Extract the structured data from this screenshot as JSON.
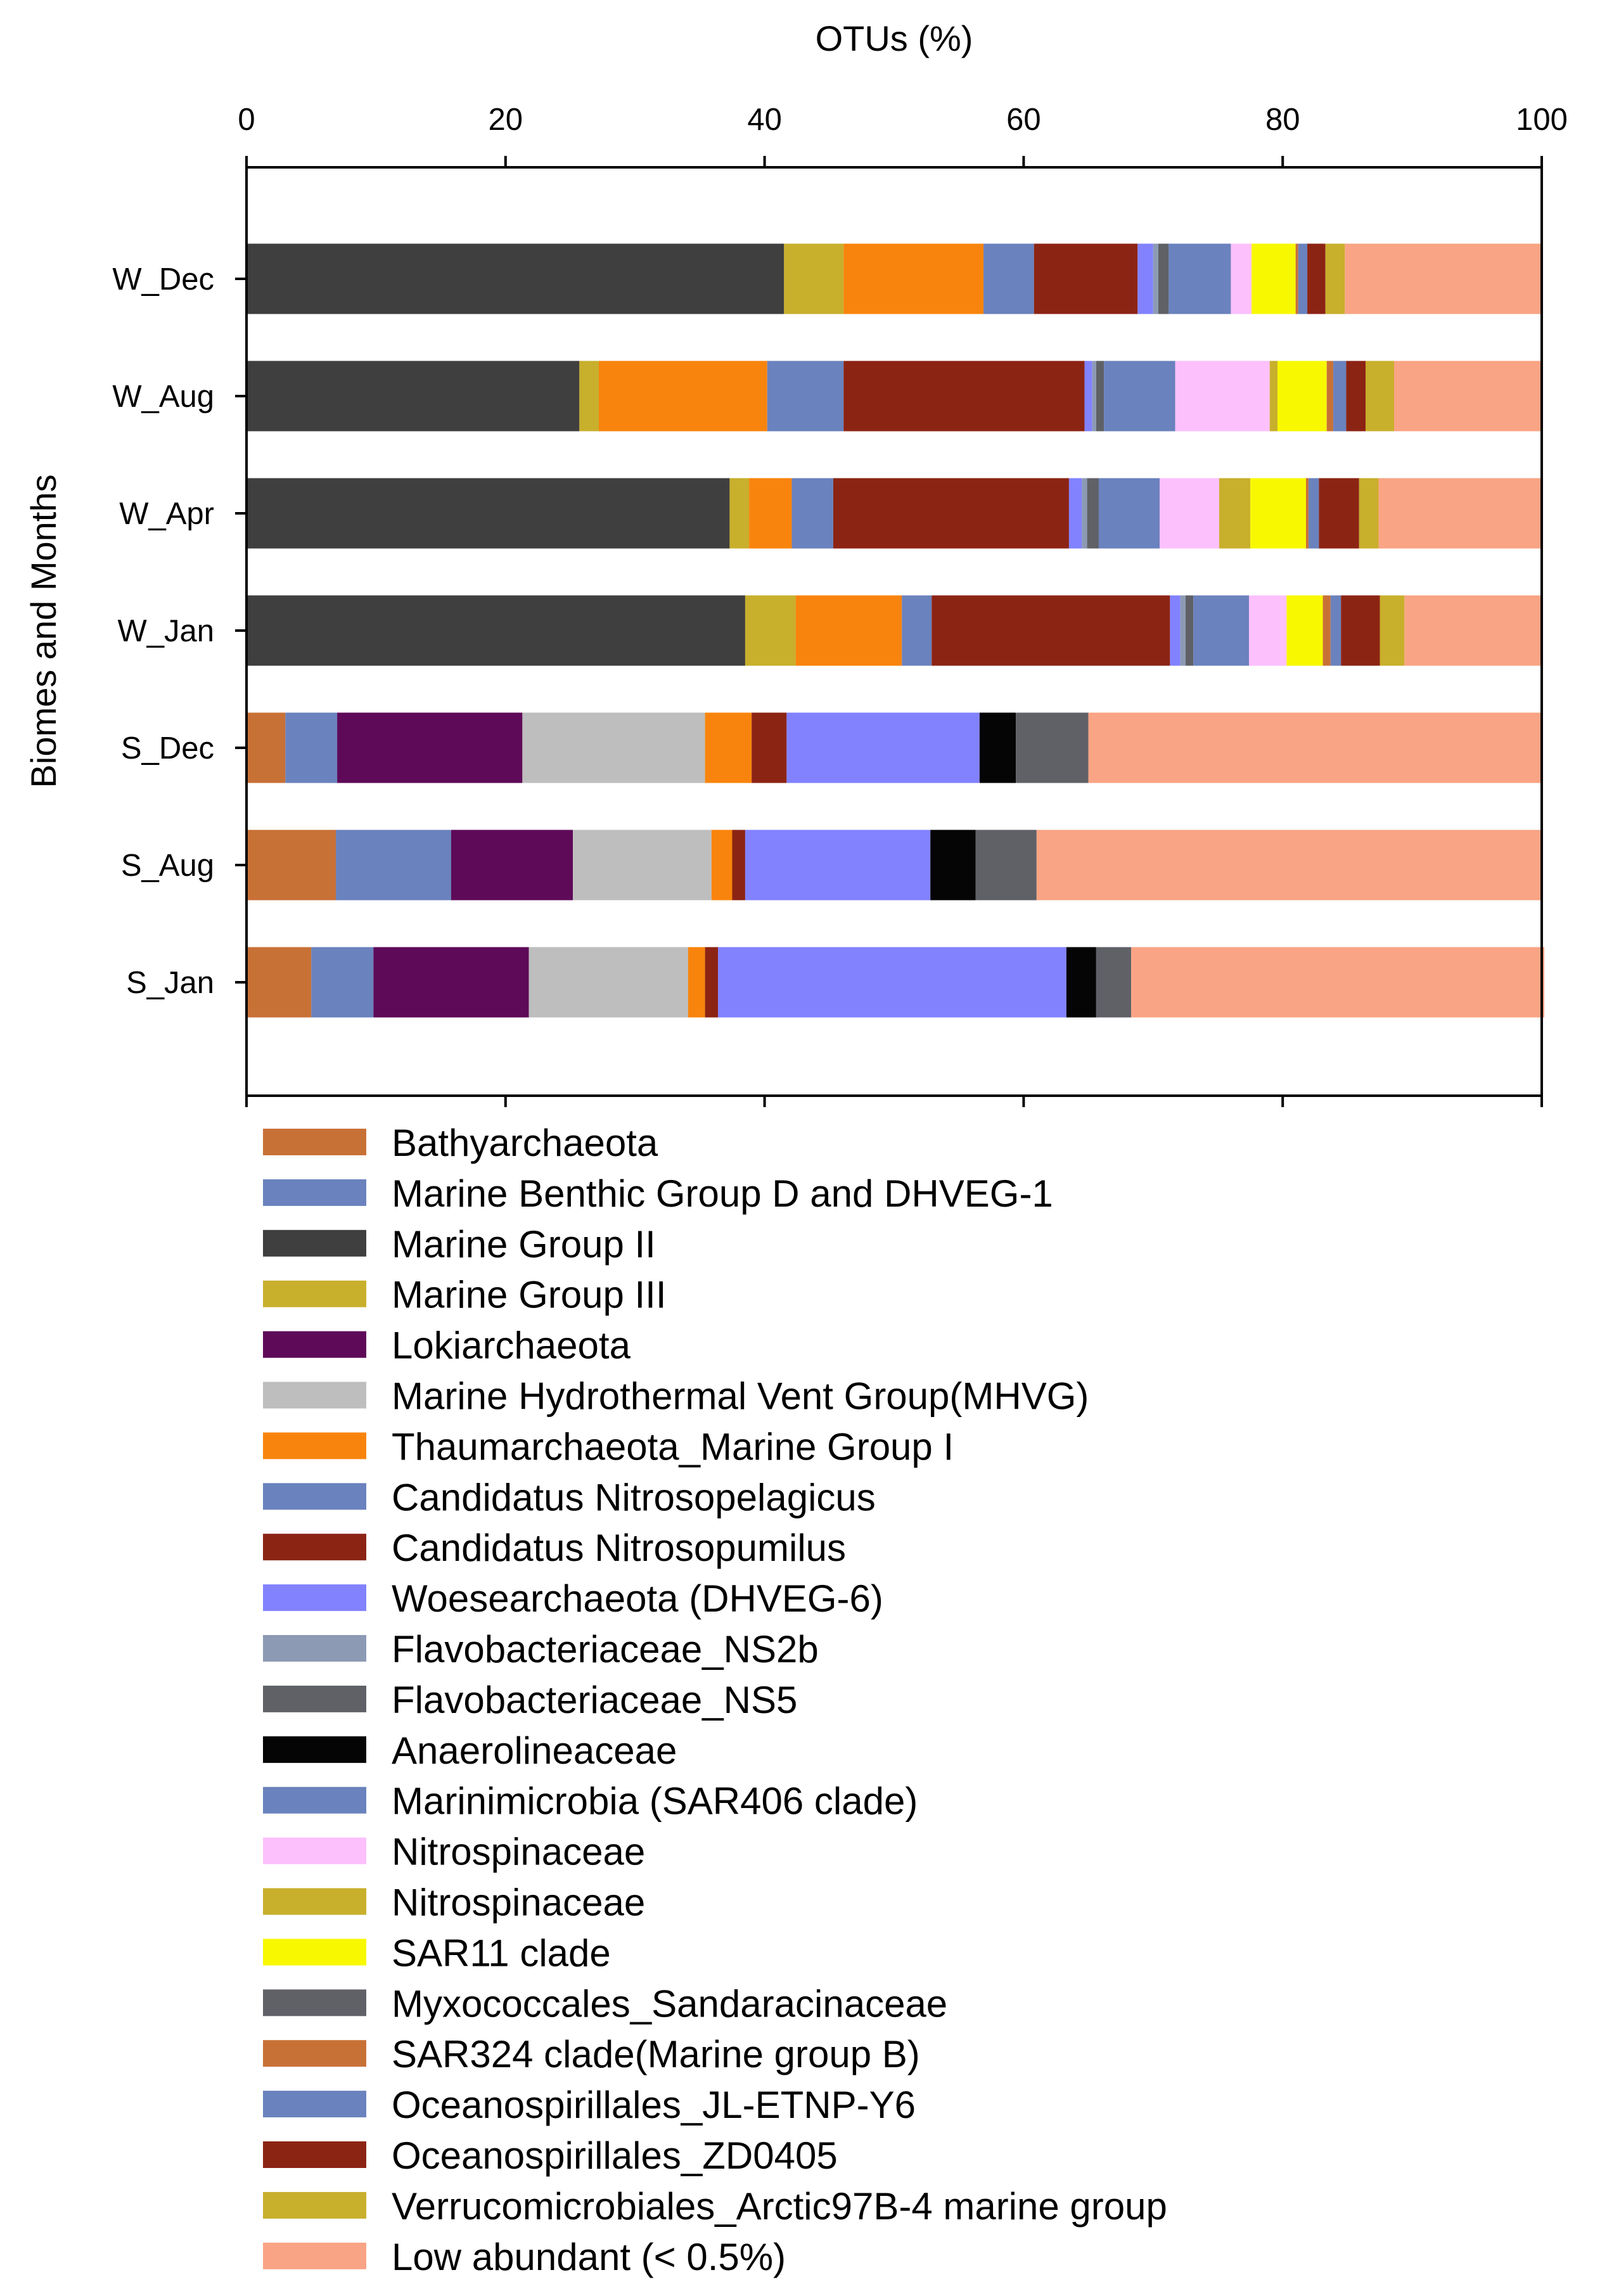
{
  "chart_data": {
    "type": "bar",
    "orientation": "horizontal",
    "stacked": true,
    "xlabel": "OTUs (%)",
    "ylabel": "Biomes and Months",
    "xlim": [
      0,
      100
    ],
    "xticks": [
      "0",
      "20",
      "40",
      "60",
      "80",
      "100"
    ],
    "categories": [
      "W_Dec",
      "W_Aug",
      "W_Apr",
      "W_Jan",
      "S_Dec",
      "S_Aug",
      "S_Jan"
    ],
    "series": [
      {
        "name": "Bathyarchaeota",
        "color": "#C87137",
        "values": [
          0,
          0,
          0,
          0,
          3.0,
          6.9,
          5.0
        ]
      },
      {
        "name": "Marine Benthic Group D and DHVEG-1",
        "color": "#6A82BD",
        "values": [
          0,
          0,
          0,
          0,
          4.0,
          8.9,
          4.8
        ]
      },
      {
        "name": "Marine Group II",
        "color": "#3F3F3F",
        "values": [
          41.5,
          25.7,
          37.3,
          38.5,
          0,
          0,
          0
        ]
      },
      {
        "name": "Marine Group III",
        "color": "#C8AF2C",
        "values": [
          4.6,
          1.5,
          1.5,
          3.9,
          0,
          0,
          0
        ]
      },
      {
        "name": "Lokiarchaeota",
        "color": "#5E0A59",
        "values": [
          0,
          0,
          0,
          0,
          14.3,
          9.4,
          12.0
        ]
      },
      {
        "name": "Marine Hydrothermal Vent Group(MHVG)",
        "color": "#BEBEBE",
        "values": [
          0,
          0,
          0,
          0,
          14.1,
          10.7,
          12.3
        ]
      },
      {
        "name": "Thaumarchaeota_Marine Group I",
        "color": "#F8840D",
        "values": [
          10.8,
          13.0,
          3.3,
          8.2,
          3.6,
          1.6,
          1.3
        ]
      },
      {
        "name": "Candidatus Nitrosopelagicus",
        "color": "#6A82BD",
        "values": [
          3.9,
          5.9,
          3.2,
          2.3,
          0,
          0,
          0
        ]
      },
      {
        "name": "Candidatus Nitrosopumilus",
        "color": "#8C2414",
        "values": [
          8.0,
          18.6,
          18.2,
          18.4,
          2.7,
          1.0,
          1.0
        ]
      },
      {
        "name": "Woesearchaeota (DHVEG-6)",
        "color": "#8282FF",
        "values": [
          1.2,
          0.6,
          1.0,
          0.8,
          14.9,
          14.3,
          26.9
        ]
      },
      {
        "name": "Flavobacteriaceae_NS2b",
        "color": "#8C9AB4",
        "values": [
          0.4,
          0.3,
          0.4,
          0.4,
          0,
          0,
          0
        ]
      },
      {
        "name": "Flavobacteriaceae_NS5",
        "color": "#5F6167",
        "values": [
          0.8,
          0.6,
          0.9,
          0.6,
          0,
          0,
          0
        ]
      },
      {
        "name": "Anaerolineaceae",
        "color": "#050505",
        "values": [
          0,
          0,
          0,
          0,
          2.8,
          3.5,
          2.3
        ]
      },
      {
        "name": "Marinimicrobia (SAR406 clade)",
        "color": "#6A82BD",
        "values": [
          4.8,
          5.5,
          4.7,
          4.3,
          0,
          0,
          0
        ]
      },
      {
        "name": "Nitrospinaceae",
        "color": "#FCC0FC",
        "values": [
          1.6,
          7.3,
          4.6,
          2.9,
          0,
          0,
          0
        ]
      },
      {
        "name": "Nitrospinaceae",
        "color": "#C8AF2C",
        "values": [
          0,
          0.6,
          2.4,
          0,
          0,
          0,
          0
        ]
      },
      {
        "name": "SAR11 clade",
        "color": "#F8F800",
        "values": [
          3.4,
          3.8,
          4.3,
          2.8,
          0,
          0,
          0
        ]
      },
      {
        "name": "Myxococcales_Sandaracinaceae",
        "color": "#5F6167",
        "values": [
          0,
          0,
          0,
          0,
          5.6,
          4.7,
          2.7
        ]
      },
      {
        "name": "SAR324 clade(Marine group B)",
        "color": "#C87137",
        "values": [
          0.2,
          0.5,
          0.2,
          0.6,
          0,
          0,
          0
        ]
      },
      {
        "name": "Oceanospirillales_JL-ETNP-Y6",
        "color": "#6A82BD",
        "values": [
          0.7,
          1.0,
          0.8,
          0.8,
          0,
          0,
          0
        ]
      },
      {
        "name": "Oceanospirillales_ZD0405",
        "color": "#8C2414",
        "values": [
          1.4,
          1.5,
          3.1,
          3.0,
          0,
          0,
          0
        ]
      },
      {
        "name": "Verrucomicrobiales_Arctic97B-4 marine group",
        "color": "#C8AF2C",
        "values": [
          1.5,
          2.2,
          1.5,
          1.9,
          0,
          0,
          0
        ]
      },
      {
        "name": "Low abundant (< 0.5%)",
        "color": "#F9A484",
        "values": [
          15.2,
          11.4,
          12.6,
          10.6,
          35.0,
          38.9,
          31.9
        ]
      }
    ]
  }
}
